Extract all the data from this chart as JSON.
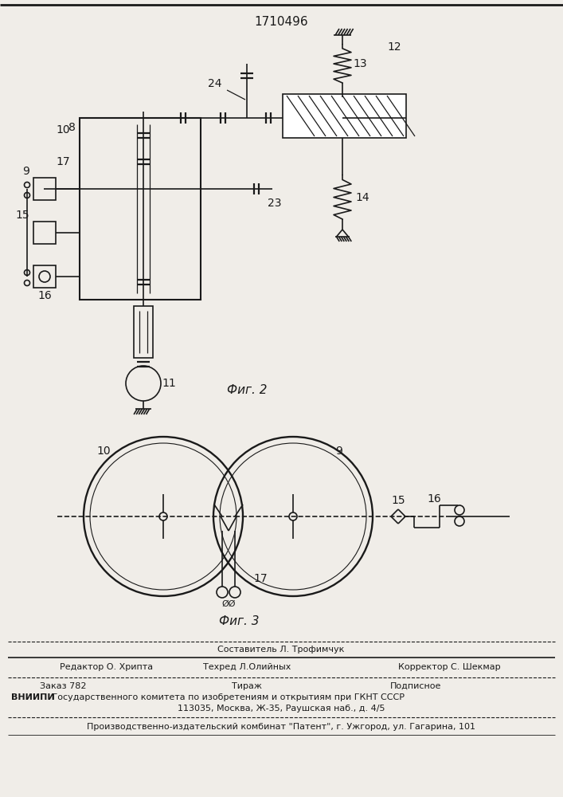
{
  "title": "1710496",
  "fig2_label": "Фиг. 2",
  "fig3_label": "Фиг. 3",
  "bg_color": "#f0ede8",
  "line_color": "#1a1a1a",
  "composer": "Составитель Л. Трофимчук",
  "editor": "Редактор О. Хрипта",
  "tekhred": "Техред Л.Олийных",
  "korrektor": "Корректор С. Шекмар",
  "order": "Заказ 782",
  "tirage": "Тираж",
  "podpisnoe": "Подписное",
  "vniip_bold": "ВНИИПИ",
  "vniip_rest": " Государственного комитета по изобретениям и открытиям при ГКНТ СССР",
  "address": "113035, Москва, Ж-35, Раушская наб., д. 4/5",
  "producer": "Производственно-издательский комбинат \"Патент\", г. Ужгород, ул. Гагарина, 101"
}
